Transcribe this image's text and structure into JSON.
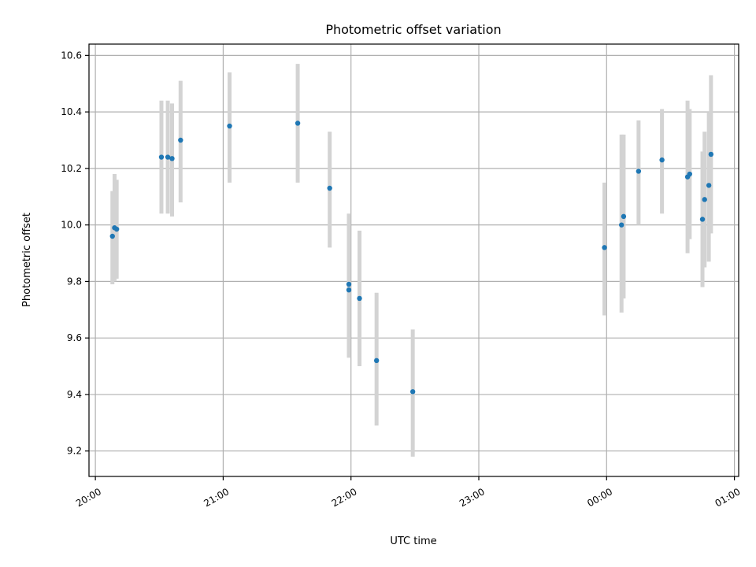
{
  "chart_data": {
    "type": "scatter",
    "title": "Photometric offset variation",
    "xlabel": "UTC time",
    "ylabel": "Photometric offset",
    "x_unit": "UTC time, Day 1 (20:00-23:59) to Day 2 (00:00-01:00)",
    "xlim": [
      "19:57",
      "01:02"
    ],
    "ylim": [
      9.11,
      10.64
    ],
    "x_ticks": [
      {
        "time": "20:00",
        "label": "20:00"
      },
      {
        "time": "21:00",
        "label": "21:00"
      },
      {
        "time": "22:00",
        "label": "22:00"
      },
      {
        "time": "23:00",
        "label": "23:00"
      },
      {
        "time": "00:00",
        "label": "00:00"
      },
      {
        "time": "01:00",
        "label": "01:00"
      }
    ],
    "y_ticks": [
      9.2,
      9.4,
      9.6,
      9.8,
      10.0,
      10.2,
      10.4,
      10.6
    ],
    "grid": true,
    "marker_color": "#1f77b4",
    "errorbar_color": "#d3d3d3",
    "series": [
      {
        "points": [
          {
            "time": "20:08",
            "y": 9.96,
            "err_low": 9.79,
            "err_high": 10.12
          },
          {
            "time": "20:09",
            "y": 9.99,
            "err_low": 9.8,
            "err_high": 10.18
          },
          {
            "time": "20:10",
            "y": 9.985,
            "err_low": 9.81,
            "err_high": 10.16
          },
          {
            "time": "20:31",
            "y": 10.24,
            "err_low": 10.04,
            "err_high": 10.44
          },
          {
            "time": "20:34",
            "y": 10.24,
            "err_low": 10.04,
            "err_high": 10.44
          },
          {
            "time": "20:36",
            "y": 10.235,
            "err_low": 10.03,
            "err_high": 10.43
          },
          {
            "time": "20:40",
            "y": 10.3,
            "err_low": 10.08,
            "err_high": 10.51
          },
          {
            "time": "21:03",
            "y": 10.35,
            "err_low": 10.15,
            "err_high": 10.54
          },
          {
            "time": "21:35",
            "y": 10.36,
            "err_low": 10.15,
            "err_high": 10.57
          },
          {
            "time": "21:50",
            "y": 10.13,
            "err_low": 9.92,
            "err_high": 10.33
          },
          {
            "time": "21:59",
            "y": 9.77,
            "err_low": 9.53,
            "err_high": 10.0
          },
          {
            "time": "21:59",
            "y": 9.79,
            "err_low": 9.55,
            "err_high": 10.04
          },
          {
            "time": "22:04",
            "y": 9.74,
            "err_low": 9.5,
            "err_high": 9.98
          },
          {
            "time": "22:12",
            "y": 9.52,
            "err_low": 9.29,
            "err_high": 9.76
          },
          {
            "time": "22:29",
            "y": 9.41,
            "err_low": 9.18,
            "err_high": 9.63
          },
          {
            "time": "23:59",
            "y": 9.92,
            "err_low": 9.68,
            "err_high": 10.15
          },
          {
            "time": "00:07",
            "y": 10.0,
            "err_low": 9.69,
            "err_high": 10.32
          },
          {
            "time": "00:08",
            "y": 10.03,
            "err_low": 9.74,
            "err_high": 10.32
          },
          {
            "time": "00:15",
            "y": 10.19,
            "err_low": 10.0,
            "err_high": 10.37
          },
          {
            "time": "00:26",
            "y": 10.23,
            "err_low": 10.04,
            "err_high": 10.41
          },
          {
            "time": "00:38",
            "y": 10.17,
            "err_low": 9.9,
            "err_high": 10.44
          },
          {
            "time": "00:39",
            "y": 10.18,
            "err_low": 9.95,
            "err_high": 10.41
          },
          {
            "time": "00:45",
            "y": 10.02,
            "err_low": 9.78,
            "err_high": 10.26
          },
          {
            "time": "00:46",
            "y": 10.09,
            "err_low": 9.85,
            "err_high": 10.33
          },
          {
            "time": "00:48",
            "y": 10.14,
            "err_low": 9.87,
            "err_high": 10.4
          },
          {
            "time": "00:49",
            "y": 10.25,
            "err_low": 9.97,
            "err_high": 10.53
          }
        ]
      }
    ]
  }
}
